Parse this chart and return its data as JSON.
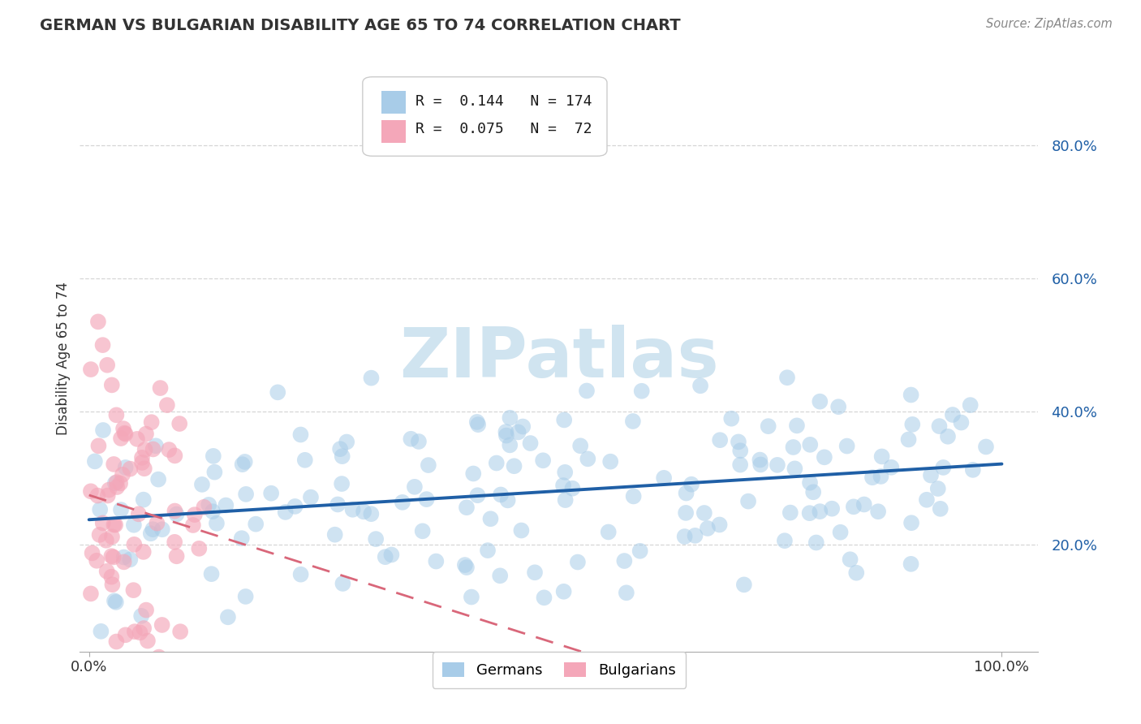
{
  "title": "GERMAN VS BULGARIAN DISABILITY AGE 65 TO 74 CORRELATION CHART",
  "source": "Source: ZipAtlas.com",
  "ylabel": "Disability Age 65 to 74",
  "y_ticks": [
    0.2,
    0.4,
    0.6,
    0.8
  ],
  "y_tick_labels": [
    "20.0%",
    "40.0%",
    "60.0%",
    "80.0%"
  ],
  "x_ticks": [
    0.0,
    1.0
  ],
  "x_tick_labels": [
    "0.0%",
    "100.0%"
  ],
  "german_R": 0.144,
  "german_N": 174,
  "bulgarian_R": 0.075,
  "bulgarian_N": 72,
  "german_color": "#a8cce8",
  "bulgarian_color": "#f4a7b9",
  "german_line_color": "#1f5fa6",
  "bulgarian_line_color": "#d9677a",
  "watermark_text": "ZIPatlas",
  "watermark_color": "#d0e4f0",
  "background_color": "#ffffff",
  "grid_color": "#cccccc",
  "xlim": [
    -0.01,
    1.04
  ],
  "ylim": [
    0.04,
    0.92
  ]
}
